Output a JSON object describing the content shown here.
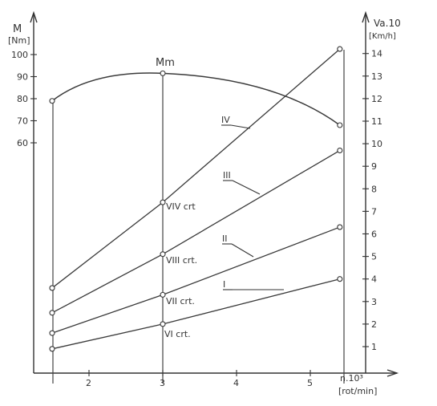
{
  "chart_data": {
    "type": "line",
    "left_axis": {
      "label_top": "M",
      "label_unit": "[Nm]",
      "ticks": [
        60,
        70,
        80,
        90,
        100
      ],
      "tick_labels": [
        "60",
        "70",
        "80",
        "90",
        "100"
      ]
    },
    "right_axis": {
      "label_top": "Va.10",
      "label_unit": "[Km/h]",
      "ticks": [
        1,
        2,
        3,
        4,
        5,
        6,
        7,
        8,
        9,
        10,
        11,
        12,
        13,
        14
      ],
      "tick_labels": [
        "1",
        "2",
        "3",
        "4",
        "5",
        "6",
        "7",
        "8",
        "9",
        "10",
        "11",
        "12",
        "13",
        "14"
      ]
    },
    "x_axis": {
      "label_top": "n.10³",
      "label_unit": "[rot/min]",
      "ticks": [
        2,
        3,
        4,
        5
      ],
      "tick_labels": [
        "2",
        "3",
        "4",
        "5"
      ]
    },
    "torque_series": {
      "label": "Mm",
      "x": [
        1.5,
        3.0,
        5.4
      ],
      "y": [
        79,
        91.5,
        68
      ]
    },
    "series": [
      {
        "name": "I",
        "x": [
          1.5,
          3.0,
          5.4
        ],
        "y": [
          0.9,
          2.0,
          4.0
        ]
      },
      {
        "name": "II",
        "x": [
          1.5,
          3.0,
          5.4
        ],
        "y": [
          1.6,
          3.3,
          6.3
        ]
      },
      {
        "name": "III",
        "x": [
          1.5,
          3.0,
          5.4
        ],
        "y": [
          2.5,
          5.1,
          9.7
        ]
      },
      {
        "name": "IV",
        "x": [
          1.5,
          3.0,
          5.4
        ],
        "y": [
          3.6,
          7.4,
          14.2
        ]
      }
    ],
    "annotations": [
      "VI crt.",
      "VII crt.",
      "VIII crt.",
      "VIV crt"
    ]
  }
}
